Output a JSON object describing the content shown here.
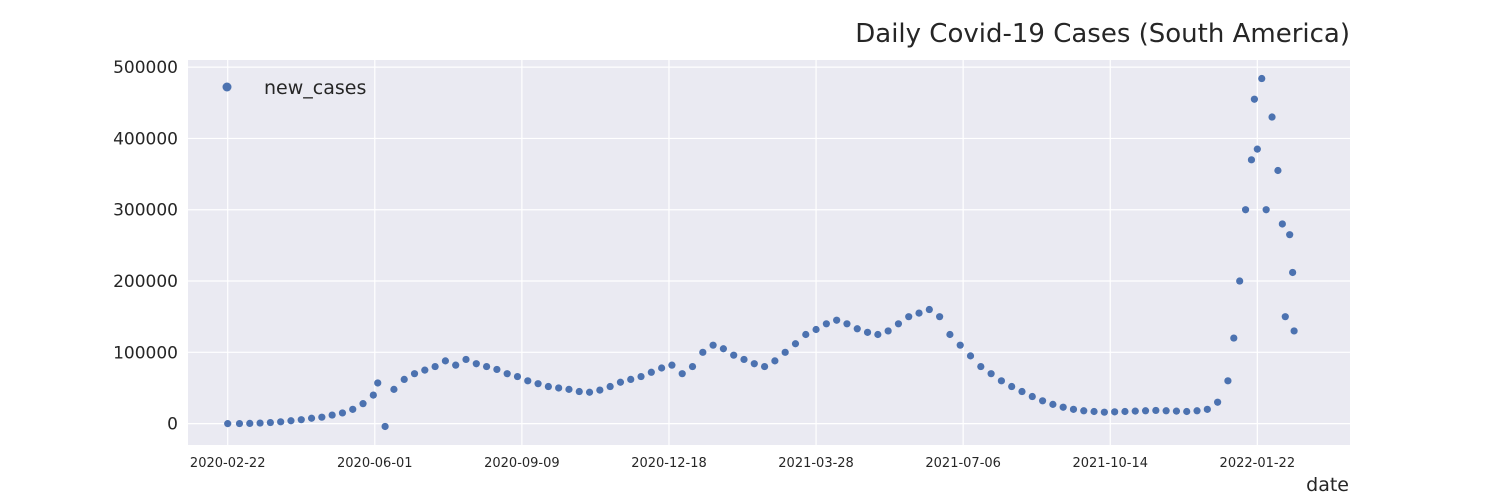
{
  "chart_data": {
    "type": "scatter",
    "title": "Daily Covid-19 Cases (South America)",
    "xlabel": "date",
    "ylabel": "",
    "x_ticks": [
      "2020-02-22",
      "2020-06-01",
      "2020-09-09",
      "2020-12-18",
      "2021-03-28",
      "2021-07-06",
      "2021-10-14",
      "2022-01-22"
    ],
    "y_ticks": [
      "0",
      "100000",
      "200000",
      "300000",
      "400000",
      "500000"
    ],
    "xlim": [
      "2020-01-26",
      "2022-03-26"
    ],
    "ylim": [
      -30000,
      510000
    ],
    "legend": {
      "position": "top-left",
      "entries": [
        "new_cases"
      ]
    },
    "grid": true,
    "colors": {
      "marker": "#4c72b0",
      "background": "#eaeaf2",
      "grid": "#ffffff"
    },
    "series": [
      {
        "name": "new_cases",
        "points": [
          [
            "2020-02-22",
            0
          ],
          [
            "2020-03-01",
            100
          ],
          [
            "2020-03-08",
            300
          ],
          [
            "2020-03-15",
            800
          ],
          [
            "2020-03-22",
            1500
          ],
          [
            "2020-03-29",
            2500
          ],
          [
            "2020-04-05",
            4000
          ],
          [
            "2020-04-12",
            5500
          ],
          [
            "2020-04-19",
            7500
          ],
          [
            "2020-04-26",
            9000
          ],
          [
            "2020-05-03",
            12000
          ],
          [
            "2020-05-10",
            15000
          ],
          [
            "2020-05-17",
            20000
          ],
          [
            "2020-05-24",
            28000
          ],
          [
            "2020-05-31",
            40000
          ],
          [
            "2020-06-03",
            57000
          ],
          [
            "2020-06-08",
            -4000
          ],
          [
            "2020-06-14",
            48000
          ],
          [
            "2020-06-21",
            62000
          ],
          [
            "2020-06-28",
            70000
          ],
          [
            "2020-07-05",
            75000
          ],
          [
            "2020-07-12",
            80000
          ],
          [
            "2020-07-19",
            88000
          ],
          [
            "2020-07-26",
            82000
          ],
          [
            "2020-08-02",
            90000
          ],
          [
            "2020-08-09",
            84000
          ],
          [
            "2020-08-16",
            80000
          ],
          [
            "2020-08-23",
            76000
          ],
          [
            "2020-08-30",
            70000
          ],
          [
            "2020-09-06",
            66000
          ],
          [
            "2020-09-13",
            60000
          ],
          [
            "2020-09-20",
            56000
          ],
          [
            "2020-09-27",
            52000
          ],
          [
            "2020-10-04",
            50000
          ],
          [
            "2020-10-11",
            48000
          ],
          [
            "2020-10-18",
            45000
          ],
          [
            "2020-10-25",
            44000
          ],
          [
            "2020-11-01",
            47000
          ],
          [
            "2020-11-08",
            52000
          ],
          [
            "2020-11-15",
            58000
          ],
          [
            "2020-11-22",
            62000
          ],
          [
            "2020-11-29",
            66000
          ],
          [
            "2020-12-06",
            72000
          ],
          [
            "2020-12-13",
            78000
          ],
          [
            "2020-12-20",
            82000
          ],
          [
            "2020-12-27",
            70000
          ],
          [
            "2021-01-03",
            80000
          ],
          [
            "2021-01-10",
            100000
          ],
          [
            "2021-01-17",
            110000
          ],
          [
            "2021-01-24",
            105000
          ],
          [
            "2021-01-31",
            96000
          ],
          [
            "2021-02-07",
            90000
          ],
          [
            "2021-02-14",
            84000
          ],
          [
            "2021-02-21",
            80000
          ],
          [
            "2021-02-28",
            88000
          ],
          [
            "2021-03-07",
            100000
          ],
          [
            "2021-03-14",
            112000
          ],
          [
            "2021-03-21",
            125000
          ],
          [
            "2021-03-28",
            132000
          ],
          [
            "2021-04-04",
            140000
          ],
          [
            "2021-04-11",
            145000
          ],
          [
            "2021-04-18",
            140000
          ],
          [
            "2021-04-25",
            133000
          ],
          [
            "2021-05-02",
            128000
          ],
          [
            "2021-05-09",
            125000
          ],
          [
            "2021-05-16",
            130000
          ],
          [
            "2021-05-23",
            140000
          ],
          [
            "2021-05-30",
            150000
          ],
          [
            "2021-06-06",
            155000
          ],
          [
            "2021-06-13",
            160000
          ],
          [
            "2021-06-20",
            150000
          ],
          [
            "2021-06-27",
            125000
          ],
          [
            "2021-07-04",
            110000
          ],
          [
            "2021-07-11",
            95000
          ],
          [
            "2021-07-18",
            80000
          ],
          [
            "2021-07-25",
            70000
          ],
          [
            "2021-08-01",
            60000
          ],
          [
            "2021-08-08",
            52000
          ],
          [
            "2021-08-15",
            45000
          ],
          [
            "2021-08-22",
            38000
          ],
          [
            "2021-08-29",
            32000
          ],
          [
            "2021-09-05",
            27000
          ],
          [
            "2021-09-12",
            23000
          ],
          [
            "2021-09-19",
            20000
          ],
          [
            "2021-09-26",
            18000
          ],
          [
            "2021-10-03",
            17000
          ],
          [
            "2021-10-10",
            16000
          ],
          [
            "2021-10-17",
            16500
          ],
          [
            "2021-10-24",
            17000
          ],
          [
            "2021-10-31",
            17500
          ],
          [
            "2021-11-07",
            18000
          ],
          [
            "2021-11-14",
            18500
          ],
          [
            "2021-11-21",
            18000
          ],
          [
            "2021-11-28",
            17500
          ],
          [
            "2021-12-05",
            17000
          ],
          [
            "2021-12-12",
            18000
          ],
          [
            "2021-12-19",
            20000
          ],
          [
            "2021-12-26",
            30000
          ],
          [
            "2022-01-02",
            60000
          ],
          [
            "2022-01-06",
            120000
          ],
          [
            "2022-01-10",
            200000
          ],
          [
            "2022-01-14",
            300000
          ],
          [
            "2022-01-18",
            370000
          ],
          [
            "2022-01-20",
            455000
          ],
          [
            "2022-01-22",
            385000
          ],
          [
            "2022-01-25",
            484000
          ],
          [
            "2022-01-28",
            300000
          ],
          [
            "2022-02-01",
            430000
          ],
          [
            "2022-02-05",
            355000
          ],
          [
            "2022-02-08",
            280000
          ],
          [
            "2022-02-10",
            150000
          ],
          [
            "2022-02-13",
            265000
          ],
          [
            "2022-02-15",
            212000
          ],
          [
            "2022-02-16",
            130000
          ]
        ]
      }
    ]
  }
}
